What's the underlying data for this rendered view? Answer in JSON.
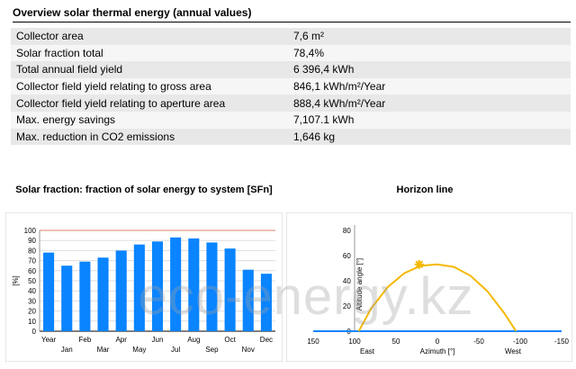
{
  "section_title": "Overview solar thermal energy (annual values)",
  "table_rows": [
    {
      "label": "Collector area",
      "value": "7,6 m²"
    },
    {
      "label": "Solar fraction total",
      "value": "78,4%"
    },
    {
      "label": "Total annual field yield",
      "value": "6 396,4 kWh"
    },
    {
      "label": "Collector field yield relating to gross area",
      "value": "846,1 kWh/m²/Year"
    },
    {
      "label": "Collector field yield relating to aperture area",
      "value": "888,4 kWh/m²/Year"
    },
    {
      "label": "Max. energy savings",
      "value": "7,107.1 kWh"
    },
    {
      "label": "Max. reduction in CO2 emissions",
      "value": "1,646 kg"
    }
  ],
  "chart_data": [
    {
      "type": "bar",
      "title": "Solar fraction: fraction of solar energy to system [SFn]",
      "ylabel": "[%]",
      "xlabel": "",
      "ylim": [
        0,
        100
      ],
      "yticks": [
        0,
        10,
        20,
        30,
        40,
        50,
        60,
        70,
        80,
        90,
        100
      ],
      "categories": [
        "Year",
        "Jan",
        "Feb",
        "Mar",
        "Apr",
        "May",
        "Jun",
        "Jul",
        "Aug",
        "Sep",
        "Oct",
        "Nov",
        "Dec"
      ],
      "values": [
        78,
        65,
        69,
        73,
        80,
        86,
        89,
        93,
        92,
        88,
        82,
        61,
        57
      ],
      "color": "#0a84ff"
    },
    {
      "type": "line",
      "title": "Horizon line",
      "xlabel": "Azimuth [°]",
      "ylabel": "Altitude angle [°]",
      "xlim": [
        150,
        -150
      ],
      "ylim": [
        0,
        80
      ],
      "xticks": [
        150,
        100,
        50,
        0,
        -50,
        -100,
        -150
      ],
      "yticks": [
        0,
        20,
        40,
        60,
        80
      ],
      "direction_labels": {
        "east": "East",
        "west": "West"
      },
      "series": [
        {
          "x": [
            95,
            80,
            60,
            40,
            20,
            0,
            -20,
            -40,
            -60,
            -80,
            -95
          ],
          "y": [
            0,
            18,
            35,
            46,
            52,
            53,
            51,
            44,
            32,
            15,
            0
          ],
          "color": "#f5b800"
        }
      ],
      "sun_marker": {
        "x": 22,
        "y": 53,
        "color": "#f5b800"
      },
      "horizon_color": "#0a84ff"
    }
  ],
  "watermark": "eco-energy.kz"
}
